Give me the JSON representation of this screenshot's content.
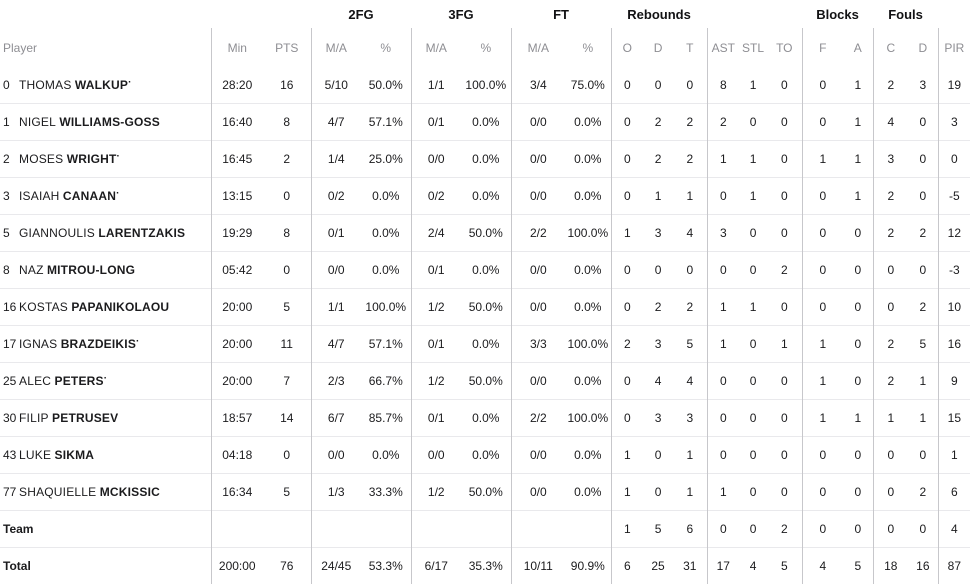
{
  "table": {
    "group_headers": [
      "2FG",
      "3FG",
      "FT",
      "Rebounds",
      "Blocks",
      "Fouls"
    ],
    "columns": [
      "Player",
      "Min",
      "PTS",
      "M/A",
      "%",
      "M/A",
      "%",
      "M/A",
      "%",
      "O",
      "D",
      "T",
      "AST",
      "STL",
      "TO",
      "F",
      "A",
      "C",
      "D",
      "PIR"
    ],
    "rows": [
      {
        "num": "0",
        "first": "THOMAS",
        "last": "WALKUP",
        "starter": "·",
        "min": "28:20",
        "pts": "16",
        "fg2_ma": "5/10",
        "fg2_pct": "50.0%",
        "fg3_ma": "1/1",
        "fg3_pct": "100.0%",
        "ft_ma": "3/4",
        "ft_pct": "75.0%",
        "reb_o": "0",
        "reb_d": "0",
        "reb_t": "0",
        "ast": "8",
        "stl": "1",
        "to": "0",
        "blk_f": "0",
        "blk_a": "1",
        "foul_c": "2",
        "foul_d": "3",
        "pir": "19"
      },
      {
        "num": "1",
        "first": "NIGEL",
        "last": "WILLIAMS-GOSS",
        "starter": "",
        "min": "16:40",
        "pts": "8",
        "fg2_ma": "4/7",
        "fg2_pct": "57.1%",
        "fg3_ma": "0/1",
        "fg3_pct": "0.0%",
        "ft_ma": "0/0",
        "ft_pct": "0.0%",
        "reb_o": "0",
        "reb_d": "2",
        "reb_t": "2",
        "ast": "2",
        "stl": "0",
        "to": "0",
        "blk_f": "0",
        "blk_a": "1",
        "foul_c": "4",
        "foul_d": "0",
        "pir": "3"
      },
      {
        "num": "2",
        "first": "MOSES",
        "last": "WRIGHT",
        "starter": "·",
        "min": "16:45",
        "pts": "2",
        "fg2_ma": "1/4",
        "fg2_pct": "25.0%",
        "fg3_ma": "0/0",
        "fg3_pct": "0.0%",
        "ft_ma": "0/0",
        "ft_pct": "0.0%",
        "reb_o": "0",
        "reb_d": "2",
        "reb_t": "2",
        "ast": "1",
        "stl": "1",
        "to": "0",
        "blk_f": "1",
        "blk_a": "1",
        "foul_c": "3",
        "foul_d": "0",
        "pir": "0"
      },
      {
        "num": "3",
        "first": "ISAIAH",
        "last": "CANAAN",
        "starter": "·",
        "min": "13:15",
        "pts": "0",
        "fg2_ma": "0/2",
        "fg2_pct": "0.0%",
        "fg3_ma": "0/2",
        "fg3_pct": "0.0%",
        "ft_ma": "0/0",
        "ft_pct": "0.0%",
        "reb_o": "0",
        "reb_d": "1",
        "reb_t": "1",
        "ast": "0",
        "stl": "1",
        "to": "0",
        "blk_f": "0",
        "blk_a": "1",
        "foul_c": "2",
        "foul_d": "0",
        "pir": "-5"
      },
      {
        "num": "5",
        "first": "GIANNOULIS",
        "last": "LARENTZAKIS",
        "starter": "",
        "min": "19:29",
        "pts": "8",
        "fg2_ma": "0/1",
        "fg2_pct": "0.0%",
        "fg3_ma": "2/4",
        "fg3_pct": "50.0%",
        "ft_ma": "2/2",
        "ft_pct": "100.0%",
        "reb_o": "1",
        "reb_d": "3",
        "reb_t": "4",
        "ast": "3",
        "stl": "0",
        "to": "0",
        "blk_f": "0",
        "blk_a": "0",
        "foul_c": "2",
        "foul_d": "2",
        "pir": "12"
      },
      {
        "num": "8",
        "first": "NAZ",
        "last": "MITROU-LONG",
        "starter": "",
        "min": "05:42",
        "pts": "0",
        "fg2_ma": "0/0",
        "fg2_pct": "0.0%",
        "fg3_ma": "0/1",
        "fg3_pct": "0.0%",
        "ft_ma": "0/0",
        "ft_pct": "0.0%",
        "reb_o": "0",
        "reb_d": "0",
        "reb_t": "0",
        "ast": "0",
        "stl": "0",
        "to": "2",
        "blk_f": "0",
        "blk_a": "0",
        "foul_c": "0",
        "foul_d": "0",
        "pir": "-3"
      },
      {
        "num": "16",
        "first": "KOSTAS",
        "last": "PAPANIKOLAOU",
        "starter": "",
        "min": "20:00",
        "pts": "5",
        "fg2_ma": "1/1",
        "fg2_pct": "100.0%",
        "fg3_ma": "1/2",
        "fg3_pct": "50.0%",
        "ft_ma": "0/0",
        "ft_pct": "0.0%",
        "reb_o": "0",
        "reb_d": "2",
        "reb_t": "2",
        "ast": "1",
        "stl": "1",
        "to": "0",
        "blk_f": "0",
        "blk_a": "0",
        "foul_c": "0",
        "foul_d": "2",
        "pir": "10"
      },
      {
        "num": "17",
        "first": "IGNAS",
        "last": "BRAZDEIKIS",
        "starter": "·",
        "min": "20:00",
        "pts": "11",
        "fg2_ma": "4/7",
        "fg2_pct": "57.1%",
        "fg3_ma": "0/1",
        "fg3_pct": "0.0%",
        "ft_ma": "3/3",
        "ft_pct": "100.0%",
        "reb_o": "2",
        "reb_d": "3",
        "reb_t": "5",
        "ast": "1",
        "stl": "0",
        "to": "1",
        "blk_f": "1",
        "blk_a": "0",
        "foul_c": "2",
        "foul_d": "5",
        "pir": "16"
      },
      {
        "num": "25",
        "first": "ALEC",
        "last": "PETERS",
        "starter": "·",
        "min": "20:00",
        "pts": "7",
        "fg2_ma": "2/3",
        "fg2_pct": "66.7%",
        "fg3_ma": "1/2",
        "fg3_pct": "50.0%",
        "ft_ma": "0/0",
        "ft_pct": "0.0%",
        "reb_o": "0",
        "reb_d": "4",
        "reb_t": "4",
        "ast": "0",
        "stl": "0",
        "to": "0",
        "blk_f": "1",
        "blk_a": "0",
        "foul_c": "2",
        "foul_d": "1",
        "pir": "9"
      },
      {
        "num": "30",
        "first": "FILIP",
        "last": "PETRUSEV",
        "starter": "",
        "min": "18:57",
        "pts": "14",
        "fg2_ma": "6/7",
        "fg2_pct": "85.7%",
        "fg3_ma": "0/1",
        "fg3_pct": "0.0%",
        "ft_ma": "2/2",
        "ft_pct": "100.0%",
        "reb_o": "0",
        "reb_d": "3",
        "reb_t": "3",
        "ast": "0",
        "stl": "0",
        "to": "0",
        "blk_f": "1",
        "blk_a": "1",
        "foul_c": "1",
        "foul_d": "1",
        "pir": "15"
      },
      {
        "num": "43",
        "first": "LUKE",
        "last": "SIKMA",
        "starter": "",
        "min": "04:18",
        "pts": "0",
        "fg2_ma": "0/0",
        "fg2_pct": "0.0%",
        "fg3_ma": "0/0",
        "fg3_pct": "0.0%",
        "ft_ma": "0/0",
        "ft_pct": "0.0%",
        "reb_o": "1",
        "reb_d": "0",
        "reb_t": "1",
        "ast": "0",
        "stl": "0",
        "to": "0",
        "blk_f": "0",
        "blk_a": "0",
        "foul_c": "0",
        "foul_d": "0",
        "pir": "1"
      },
      {
        "num": "77",
        "first": "SHAQUIELLE",
        "last": "MCKISSIC",
        "starter": "",
        "min": "16:34",
        "pts": "5",
        "fg2_ma": "1/3",
        "fg2_pct": "33.3%",
        "fg3_ma": "1/2",
        "fg3_pct": "50.0%",
        "ft_ma": "0/0",
        "ft_pct": "0.0%",
        "reb_o": "1",
        "reb_d": "0",
        "reb_t": "1",
        "ast": "1",
        "stl": "0",
        "to": "0",
        "blk_f": "0",
        "blk_a": "0",
        "foul_c": "0",
        "foul_d": "2",
        "pir": "6"
      }
    ],
    "summary_rows": [
      {
        "label": "Team",
        "min": "",
        "pts": "",
        "fg2_ma": "",
        "fg2_pct": "",
        "fg3_ma": "",
        "fg3_pct": "",
        "ft_ma": "",
        "ft_pct": "",
        "reb_o": "1",
        "reb_d": "5",
        "reb_t": "6",
        "ast": "0",
        "stl": "0",
        "to": "2",
        "blk_f": "0",
        "blk_a": "0",
        "foul_c": "0",
        "foul_d": "0",
        "pir": "4"
      },
      {
        "label": "Total",
        "min": "200:00",
        "pts": "76",
        "fg2_ma": "24/45",
        "fg2_pct": "53.3%",
        "fg3_ma": "6/17",
        "fg3_pct": "35.3%",
        "ft_ma": "10/11",
        "ft_pct": "90.9%",
        "reb_o": "6",
        "reb_d": "25",
        "reb_t": "31",
        "ast": "17",
        "stl": "4",
        "to": "5",
        "blk_f": "4",
        "blk_a": "5",
        "foul_c": "18",
        "foul_d": "16",
        "pir": "87"
      }
    ]
  }
}
